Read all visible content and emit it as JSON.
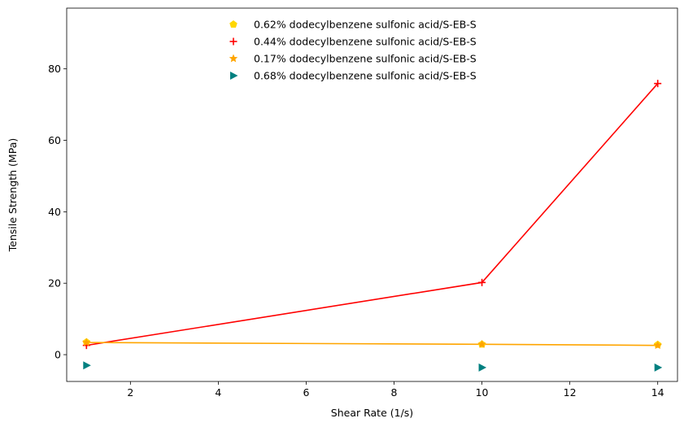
{
  "chart_data": {
    "type": "scatter",
    "xlabel": "Shear Rate (1/s)",
    "ylabel": "Tensile Strength (MPa)",
    "xlim": [
      0.55,
      14.45
    ],
    "ylim": [
      -7.5,
      97
    ],
    "xticks": [
      2,
      4,
      6,
      8,
      10,
      12,
      14
    ],
    "yticks": [
      0,
      20,
      40,
      60,
      80
    ],
    "grid": false,
    "legend_position": "top-center",
    "series": [
      {
        "name": "0.62% dodecylbenzene sulfonic acid/S-EB-S",
        "marker": "pentagon",
        "color": "#ffd700",
        "line": false,
        "x": [
          1,
          10,
          14
        ],
        "y": [
          3.5,
          2.9,
          2.8
        ]
      },
      {
        "name": "0.44% dodecylbenzene sulfonic acid/S-EB-S",
        "marker": "plus",
        "color": "#ff0000",
        "line": true,
        "x": [
          1,
          10,
          14
        ],
        "y": [
          2.6,
          20.2,
          75.9
        ]
      },
      {
        "name": "0.17% dodecylbenzene sulfonic acid/S-EB-S",
        "marker": "star",
        "color": "#ffa500",
        "line": true,
        "x": [
          1,
          10,
          14
        ],
        "y": [
          3.4,
          2.9,
          2.6
        ]
      },
      {
        "name": "0.68% dodecylbenzene sulfonic acid/S-EB-S",
        "marker": "triangle-right",
        "color": "#008080",
        "line": false,
        "x": [
          1,
          10,
          14
        ],
        "y": [
          -3.0,
          -3.6,
          -3.6
        ]
      }
    ]
  }
}
